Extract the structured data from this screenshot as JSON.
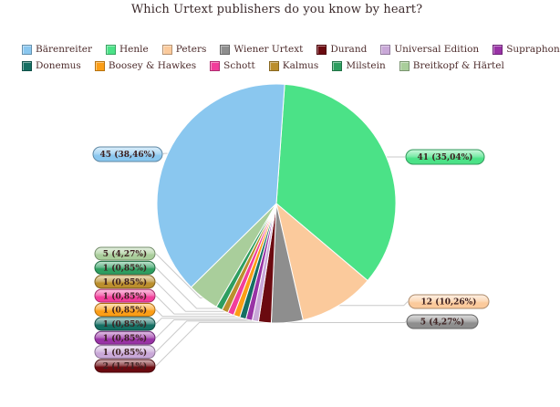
{
  "chart_data": {
    "type": "pie",
    "title": "Which Urtext publishers do you know by heart?",
    "series": [
      {
        "name": "Bärenreiter",
        "value": 45,
        "pct": "38,46%",
        "label": "45 (38,46%)",
        "color": "#8AC7EF"
      },
      {
        "name": "Henle",
        "value": 41,
        "pct": "35,04%",
        "label": "41 (35,04%)",
        "color": "#4BE287"
      },
      {
        "name": "Peters",
        "value": 12,
        "pct": "10,26%",
        "label": "12 (10,26%)",
        "color": "#FBCA9C"
      },
      {
        "name": "Wiener Urtext",
        "value": 5,
        "pct": "4,27%",
        "label": "5 (4,27%)",
        "color": "#8E8E8E"
      },
      {
        "name": "Durand",
        "value": 2,
        "pct": "1,71%",
        "label": "2 (1,71%)",
        "color": "#6B0A10"
      },
      {
        "name": "Universal Edition",
        "value": 1,
        "pct": "0,85%",
        "label": "1 (0,85%)",
        "color": "#C9A8D8"
      },
      {
        "name": "Supraphon",
        "value": 1,
        "pct": "0,85%",
        "label": "1 (0,85%)",
        "color": "#9933A6"
      },
      {
        "name": "Donemus",
        "value": 1,
        "pct": "0,85%",
        "label": "1 (0,85%)",
        "color": "#156F63"
      },
      {
        "name": "Boosey & Hawkes",
        "value": 1,
        "pct": "0,85%",
        "label": "1 (0,85%)",
        "color": "#FC9E16"
      },
      {
        "name": "Schott",
        "value": 1,
        "pct": "0,85%",
        "label": "1 (0,85%)",
        "color": "#F23E9B"
      },
      {
        "name": "Kalmus",
        "value": 1,
        "pct": "0,85%",
        "label": "1 (0,85%)",
        "color": "#BB8F2D"
      },
      {
        "name": "Milstein",
        "value": 1,
        "pct": "0,85%",
        "label": "1 (0,85%)",
        "color": "#2E9E60"
      },
      {
        "name": "Breitkopf & Härtel",
        "value": 5,
        "pct": "4,27%",
        "label": "5 (4,27%)",
        "color": "#A9CE9B"
      }
    ],
    "legend": {
      "position": "top",
      "rows": [
        [
          "Bärenreiter",
          "Henle",
          "Peters",
          "Wiener Urtext",
          "Durand",
          "Universal Edition",
          "Supraphon"
        ],
        [
          "Donemus",
          "Boosey & Hawkes",
          "Schott",
          "Kalmus",
          "Milstein",
          "Breitkopf & Härtel"
        ]
      ]
    },
    "grid": "off",
    "background": "#ffffff"
  },
  "styles": {
    "title_color": "#3b2a2b",
    "legend_text_color": "#4e2d2d",
    "label_text_color": "#3c2020",
    "leader_line_color": "#cacaca",
    "slice_separator_color": "#ffffff"
  }
}
